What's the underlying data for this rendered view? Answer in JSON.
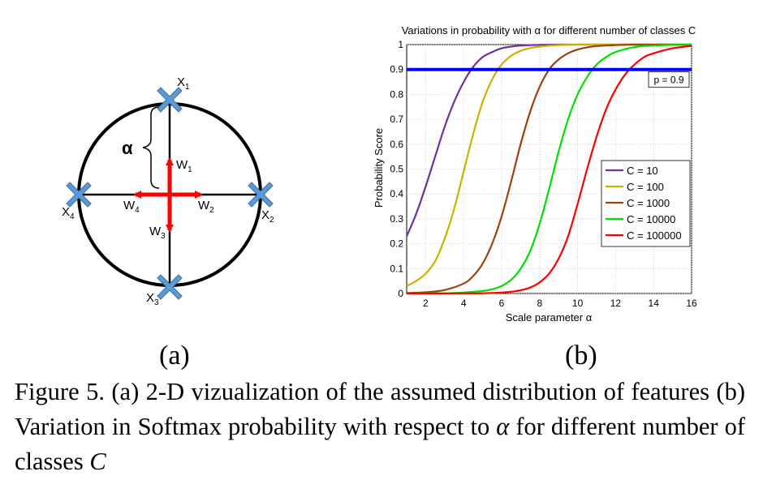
{
  "figure_a": {
    "alpha_label": "α",
    "points": [
      {
        "name": "X",
        "sub": "1"
      },
      {
        "name": "X",
        "sub": "2"
      },
      {
        "name": "X",
        "sub": "3"
      },
      {
        "name": "X",
        "sub": "4"
      }
    ],
    "weights": [
      {
        "name": "W",
        "sub": "1"
      },
      {
        "name": "W",
        "sub": "2"
      },
      {
        "name": "W",
        "sub": "3"
      },
      {
        "name": "W",
        "sub": "4"
      }
    ],
    "colors": {
      "circle": "#000000",
      "arrow": "#ff0000",
      "marker": "#5b9bd5"
    }
  },
  "chart_data": {
    "type": "line",
    "title": "Variations in probability with α for different number of classes C",
    "xlabel": "Scale parameter α",
    "ylabel": "Probability Score",
    "xlim": [
      1,
      16
    ],
    "ylim": [
      0,
      1
    ],
    "xticks": [
      "2",
      "4",
      "6",
      "8",
      "10",
      "12",
      "14",
      "16"
    ],
    "yticks": [
      "0",
      "0.1",
      "0.2",
      "0.3",
      "0.4",
      "0.5",
      "0.6",
      "0.7",
      "0.8",
      "0.9",
      "1"
    ],
    "grid": true,
    "legend_position": "right",
    "series": [
      {
        "name": "C = 10",
        "color": "#7030a0",
        "x": [
          1,
          1.5,
          2,
          2.5,
          3,
          3.5,
          4,
          4.5,
          5,
          5.5,
          6,
          6.5,
          7,
          7.5,
          8,
          9,
          10,
          11,
          12,
          14,
          16
        ],
        "y": [
          0.23,
          0.32,
          0.43,
          0.55,
          0.67,
          0.77,
          0.85,
          0.91,
          0.95,
          0.97,
          0.985,
          0.992,
          0.996,
          0.998,
          0.999,
          1,
          1,
          1,
          1,
          1,
          1
        ]
      },
      {
        "name": "C = 100",
        "color": "#c8b400",
        "x": [
          1,
          1.5,
          2,
          2.5,
          3,
          3.5,
          4,
          4.5,
          5,
          5.5,
          6,
          6.5,
          7,
          7.5,
          8,
          9,
          10,
          11,
          12,
          14,
          16
        ],
        "y": [
          0.03,
          0.05,
          0.08,
          0.13,
          0.22,
          0.34,
          0.49,
          0.64,
          0.77,
          0.86,
          0.92,
          0.955,
          0.975,
          0.986,
          0.992,
          0.998,
          1,
          1,
          1,
          1,
          1
        ]
      },
      {
        "name": "C = 1000",
        "color": "#a0400a",
        "x": [
          1,
          2,
          3,
          4,
          4.5,
          5,
          5.5,
          6,
          6.5,
          7,
          7.5,
          8,
          8.5,
          9,
          9.5,
          10,
          10.5,
          11,
          12,
          13,
          14,
          16
        ],
        "y": [
          0.002,
          0.005,
          0.014,
          0.04,
          0.07,
          0.12,
          0.2,
          0.31,
          0.45,
          0.6,
          0.73,
          0.83,
          0.9,
          0.94,
          0.965,
          0.98,
          0.989,
          0.994,
          0.998,
          1,
          1,
          1
        ]
      },
      {
        "name": "C = 10000",
        "color": "#00e000",
        "x": [
          1,
          3,
          4,
          5,
          5.5,
          6,
          6.5,
          7,
          7.5,
          8,
          8.5,
          9,
          9.5,
          10,
          10.5,
          11,
          11.5,
          12,
          13,
          14,
          15,
          16
        ],
        "y": [
          0,
          0.001,
          0.004,
          0.01,
          0.017,
          0.03,
          0.055,
          0.1,
          0.17,
          0.28,
          0.42,
          0.57,
          0.7,
          0.8,
          0.87,
          0.92,
          0.95,
          0.97,
          0.99,
          0.996,
          0.999,
          1
        ]
      },
      {
        "name": "C = 100000",
        "color": "#ff0000",
        "x": [
          1,
          4,
          5,
          6,
          6.5,
          7,
          7.5,
          8,
          8.5,
          9,
          9.5,
          10,
          10.5,
          11,
          11.5,
          12,
          12.5,
          13,
          13.5,
          14,
          15,
          16
        ],
        "y": [
          0,
          0.0005,
          0.001,
          0.004,
          0.007,
          0.013,
          0.024,
          0.045,
          0.08,
          0.14,
          0.23,
          0.36,
          0.5,
          0.63,
          0.74,
          0.82,
          0.88,
          0.92,
          0.95,
          0.965,
          0.985,
          0.995
        ]
      }
    ],
    "threshold": {
      "label": "p = 0.9",
      "y": 0.9,
      "color": "#0000ff"
    }
  },
  "labels": {
    "a": "(a)",
    "b": "(b)"
  },
  "caption": {
    "part1": "Figure 5. (a) 2-D vizualization of the assumed distribution of features (b) Variation in Softmax probability with respect to ",
    "alpha": "α",
    "part2": " for different number of classes ",
    "C": "C"
  }
}
